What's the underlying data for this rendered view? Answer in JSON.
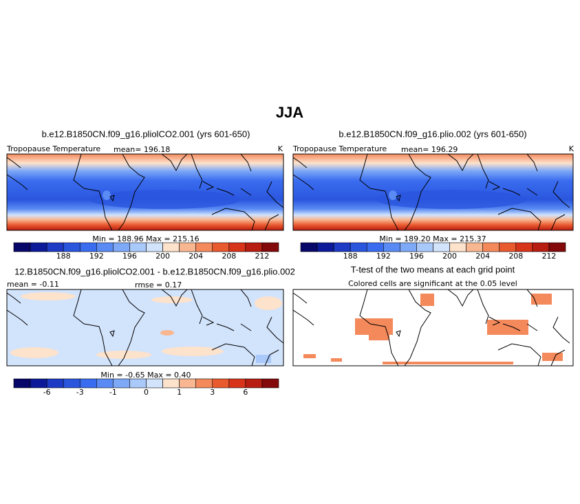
{
  "title": "JJA",
  "panels": [
    {
      "title": "b.e12.B1850CN.f09_g16.pliolCO2.001 (yrs 601-650)",
      "left": "Tropopause Temperature",
      "center": "mean= 196.18",
      "right": "K",
      "minmax": "Min =  188.96 Max =  215.16",
      "colorbar": {
        "colors": [
          "#07076a",
          "#0c1a9a",
          "#1d3bc4",
          "#2a56de",
          "#3a6cef",
          "#5a8bf4",
          "#7ea9f7",
          "#a9c9fa",
          "#d2e3fc",
          "#fde2cc",
          "#f8b791",
          "#f4895b",
          "#ea5a2f",
          "#d7341a",
          "#b71d10",
          "#83090a"
        ],
        "labels": [
          188,
          192,
          196,
          200,
          204,
          208,
          212
        ]
      }
    },
    {
      "title": "b.e12.B1850CN.f09_g16.plio.002 (yrs 601-650)",
      "left": "Tropopause Temperature",
      "center": "mean= 196.29",
      "right": "K",
      "minmax": "Min =  189.20 Max =  215.37",
      "colorbar": {
        "colors": [
          "#07076a",
          "#0c1a9a",
          "#1d3bc4",
          "#2a56de",
          "#3a6cef",
          "#5a8bf4",
          "#7ea9f7",
          "#a9c9fa",
          "#d2e3fc",
          "#fde2cc",
          "#f8b791",
          "#f4895b",
          "#ea5a2f",
          "#d7341a",
          "#b71d10",
          "#83090a"
        ],
        "labels": [
          188,
          192,
          196,
          200,
          204,
          208,
          212
        ]
      }
    },
    {
      "title": "12.B1850CN.f09_g16.pliolCO2.001 - b.e12.B1850CN.f09_g16.plio.002",
      "left": "mean =  -0.11",
      "center": "rmse =   0.17",
      "minmax": "Min =   -0.65 Max =    0.40",
      "colorbar": {
        "colors": [
          "#07076a",
          "#0c1a9a",
          "#1d3bc4",
          "#2a56de",
          "#3a6cef",
          "#5a8bf4",
          "#7ea9f7",
          "#a9c9fa",
          "#d2e3fc",
          "#fde2cc",
          "#f8b791",
          "#f4895b",
          "#ea5a2f",
          "#d7341a",
          "#b71d10",
          "#83090a"
        ],
        "labels": [
          -6,
          -3,
          -1,
          0,
          1,
          3,
          6
        ]
      }
    },
    {
      "title": "T-test of the two means at each grid point",
      "left": "Colored cells are significant at the 0.05 level"
    }
  ]
}
